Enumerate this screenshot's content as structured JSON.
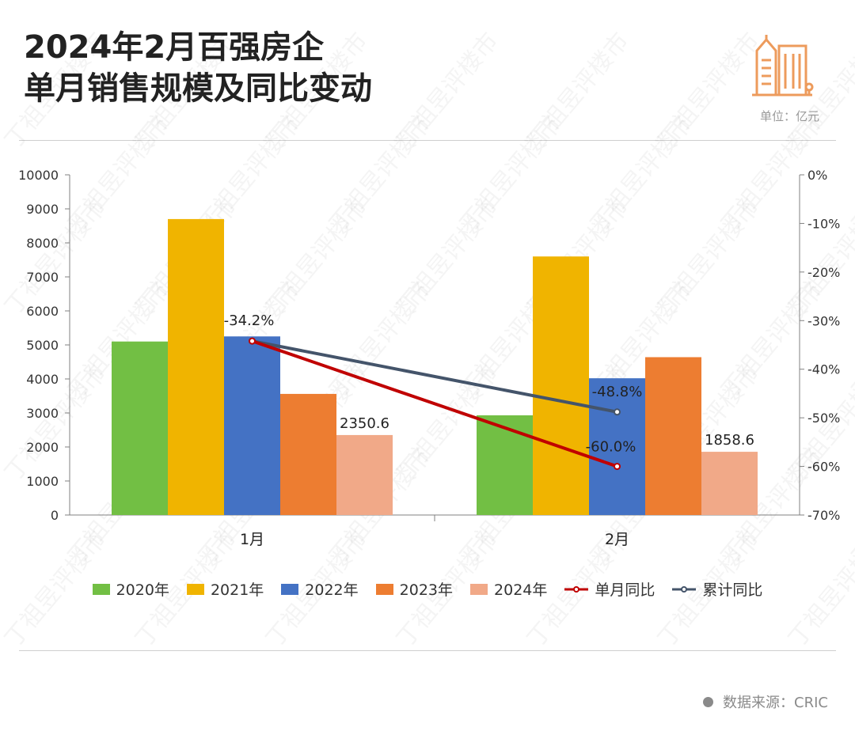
{
  "title_line1": "2024年2月百强房企",
  "title_line2": "单月销售规模及同比变动",
  "unit_label": "单位：亿元",
  "source_label": "数据来源：CRIC",
  "watermark_text": "丁祖昱评楼市",
  "icon": "building-icon",
  "colors": {
    "s2020": "#72bf44",
    "s2021": "#f0b400",
    "s2022": "#4472c4",
    "s2023": "#ed7d31",
    "s2024": "#f1a988",
    "monthly_yoy": "#c00000",
    "cumulative_yoy": "#44546a",
    "accent": "#ed9b5c"
  },
  "legend": [
    "2020年",
    "2021年",
    "2022年",
    "2023年",
    "2024年",
    "单月同比",
    "累计同比"
  ],
  "chart_data": {
    "type": "bar",
    "categories": [
      "1月",
      "2月"
    ],
    "ylim": [
      0,
      10000
    ],
    "yticks": [
      "0",
      "1000",
      "2000",
      "3000",
      "4000",
      "5000",
      "6000",
      "7000",
      "8000",
      "9000",
      "10000"
    ],
    "y2lim": [
      -70,
      0
    ],
    "y2ticks": [
      "0%",
      "-10%",
      "-20%",
      "-30%",
      "-40%",
      "-50%",
      "-60%",
      "-70%"
    ],
    "series": [
      {
        "name": "2020年",
        "values": [
          5100,
          2930
        ]
      },
      {
        "name": "2021年",
        "values": [
          8700,
          7600
        ]
      },
      {
        "name": "2022年",
        "values": [
          5250,
          4020
        ]
      },
      {
        "name": "2023年",
        "values": [
          3560,
          4640
        ]
      },
      {
        "name": "2024年",
        "values": [
          2350.6,
          1858.6
        ]
      }
    ],
    "lines": [
      {
        "name": "单月同比",
        "values": [
          -34.2,
          -60.0
        ]
      },
      {
        "name": "累计同比",
        "values": [
          -34.2,
          -48.8
        ]
      }
    ],
    "bar_labels": {
      "2024年": [
        "2350.6",
        "1858.6"
      ]
    },
    "line_labels": [
      "-34.2%",
      "-48.8%",
      "-60.0%"
    ]
  }
}
